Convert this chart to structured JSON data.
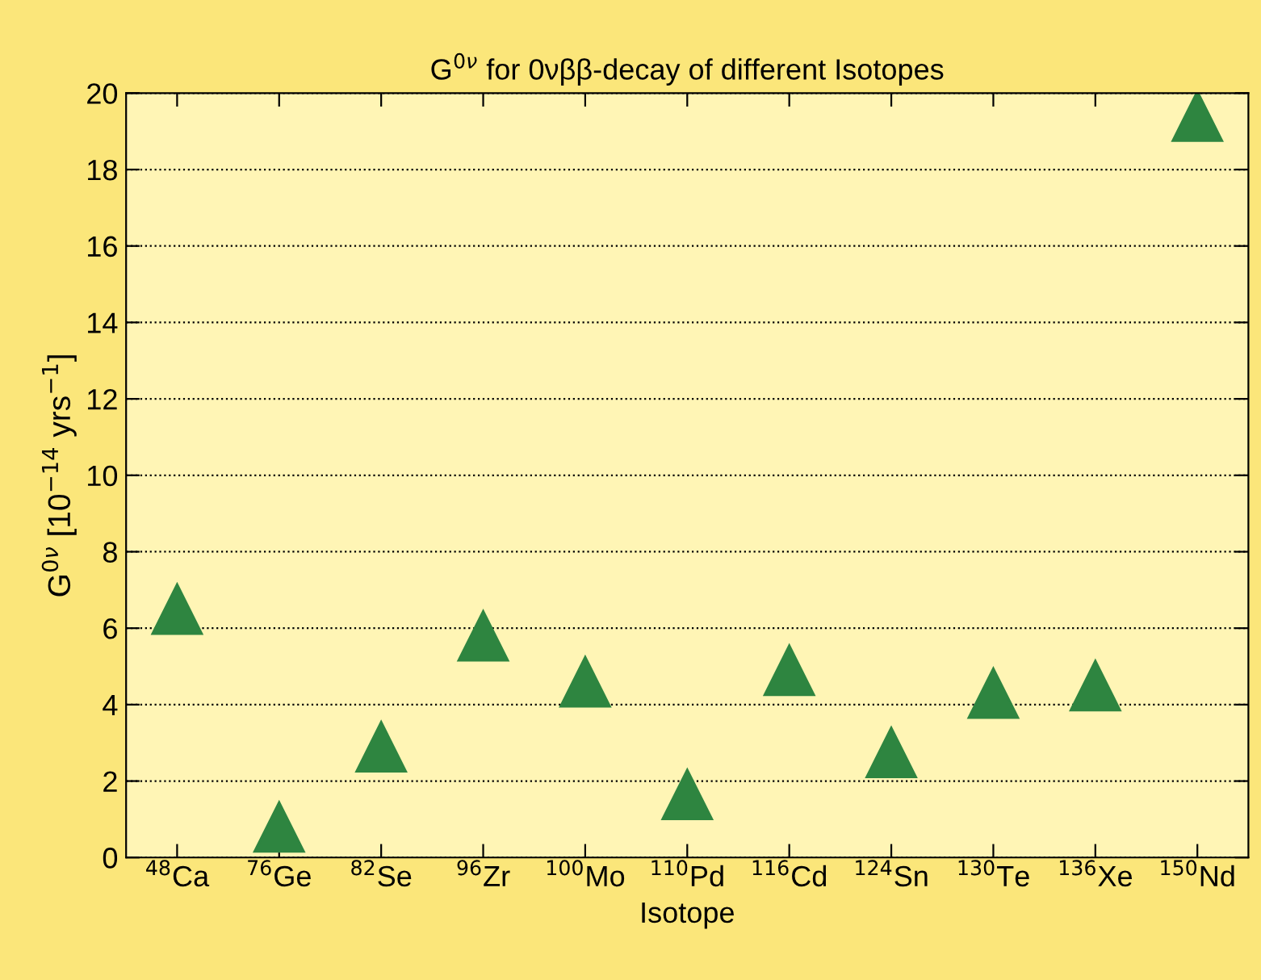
{
  "chart_data": {
    "type": "scatter",
    "title": "G$^{0ν}$ for 0νββ-decay of different Isotopes",
    "xlabel": "Isotope",
    "ylabel": "G$^{0ν}$ [10$^{−14}$ yrs$^{−1}$]",
    "categories": [
      "$^{48}$Ca",
      "$^{76}$Ge",
      "$^{82}$Se",
      "$^{96}$Zr",
      "$^{100}$Mo",
      "$^{110}$Pd",
      "$^{116}$Cd",
      "$^{124}$Sn",
      "$^{130}$Te",
      "$^{136}$Xe",
      "$^{150}$Nd"
    ],
    "series": [
      {
        "color": "#2e8540",
        "values": [
          6.5,
          0.8,
          2.9,
          5.8,
          4.6,
          1.65,
          4.9,
          2.75,
          4.3,
          4.5,
          19.4
        ]
      }
    ],
    "marker": "triangle",
    "ylim": [
      0,
      20
    ],
    "yticks": [
      0,
      2,
      4,
      6,
      8,
      10,
      12,
      14,
      16,
      18,
      20
    ],
    "grid": "y",
    "legend": false
  }
}
